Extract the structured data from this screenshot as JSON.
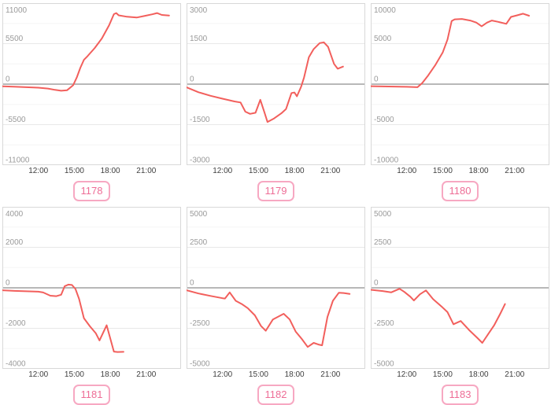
{
  "style": {
    "line_color": "#f25f5c",
    "grid_color": "#e8e8e8",
    "minor_grid_color": "#f6f6f6",
    "zero_line_color": "#8e8e8e",
    "panel_border_color": "#d8d8d8",
    "y_label_color": "#9a9a9a",
    "x_label_color": "#404040",
    "button_border_color": "#f7a8c2",
    "button_text_color": "#ee6d96"
  },
  "charts": [
    {
      "button_label": "1178",
      "chart_data": {
        "type": "line",
        "xlim_hours": [
          9.0,
          23.9
        ],
        "xticks": [
          {
            "hour": 12,
            "label": "12:00"
          },
          {
            "hour": 15,
            "label": "15:00"
          },
          {
            "hour": 18,
            "label": "18:00"
          },
          {
            "hour": 21,
            "label": "21:00"
          }
        ],
        "ylim": [
          -11000,
          11000
        ],
        "yticks": [
          11000,
          5500,
          0,
          -5500,
          -11000
        ],
        "grid": "horizontal-only",
        "legend": "none",
        "points": [
          [
            9,
            -300
          ],
          [
            10,
            -350
          ],
          [
            11,
            -420
          ],
          [
            12,
            -480
          ],
          [
            12.8,
            -600
          ],
          [
            13.4,
            -780
          ],
          [
            13.9,
            -900
          ],
          [
            14.4,
            -820
          ],
          [
            14.9,
            -150
          ],
          [
            15.2,
            900
          ],
          [
            15.5,
            2200
          ],
          [
            15.8,
            3300
          ],
          [
            16.1,
            3800
          ],
          [
            16.7,
            4900
          ],
          [
            17.3,
            6200
          ],
          [
            17.9,
            8000
          ],
          [
            18.3,
            9500
          ],
          [
            18.5,
            9650
          ],
          [
            18.7,
            9350
          ],
          [
            19.4,
            9150
          ],
          [
            20.2,
            9050
          ],
          [
            20.9,
            9280
          ],
          [
            21.5,
            9480
          ],
          [
            21.9,
            9650
          ],
          [
            22.3,
            9400
          ],
          [
            22.9,
            9320
          ]
        ]
      }
    },
    {
      "button_label": "1179",
      "chart_data": {
        "type": "line",
        "xlim_hours": [
          9.0,
          23.9
        ],
        "xticks": [
          {
            "hour": 12,
            "label": "12:00"
          },
          {
            "hour": 15,
            "label": "15:00"
          },
          {
            "hour": 18,
            "label": "18:00"
          },
          {
            "hour": 21,
            "label": "21:00"
          }
        ],
        "ylim": [
          -3000,
          3000
        ],
        "yticks": [
          3000,
          1500,
          0,
          -1500,
          -3000
        ],
        "grid": "horizontal-only",
        "legend": "none",
        "points": [
          [
            9,
            -120
          ],
          [
            10,
            -300
          ],
          [
            11,
            -430
          ],
          [
            12,
            -540
          ],
          [
            13,
            -640
          ],
          [
            13.5,
            -680
          ],
          [
            13.9,
            -1020
          ],
          [
            14.3,
            -1100
          ],
          [
            14.75,
            -1060
          ],
          [
            15.15,
            -580
          ],
          [
            15.5,
            -1050
          ],
          [
            15.75,
            -1400
          ],
          [
            16.3,
            -1270
          ],
          [
            16.9,
            -1080
          ],
          [
            17.3,
            -920
          ],
          [
            17.75,
            -330
          ],
          [
            18.0,
            -310
          ],
          [
            18.2,
            -450
          ],
          [
            18.55,
            -100
          ],
          [
            18.8,
            250
          ],
          [
            19.2,
            1000
          ],
          [
            19.6,
            1300
          ],
          [
            20.1,
            1520
          ],
          [
            20.45,
            1550
          ],
          [
            20.8,
            1380
          ],
          [
            21.3,
            750
          ],
          [
            21.6,
            570
          ],
          [
            22.05,
            650
          ]
        ]
      }
    },
    {
      "button_label": "1180",
      "chart_data": {
        "type": "line",
        "xlim_hours": [
          9.0,
          23.9
        ],
        "xticks": [
          {
            "hour": 12,
            "label": "12:00"
          },
          {
            "hour": 15,
            "label": "15:00"
          },
          {
            "hour": 18,
            "label": "18:00"
          },
          {
            "hour": 21,
            "label": "21:00"
          }
        ],
        "ylim": [
          -10000,
          10000
        ],
        "yticks": [
          10000,
          5000,
          0,
          -5000,
          -10000
        ],
        "grid": "horizontal-only",
        "legend": "none",
        "points": [
          [
            9,
            -250
          ],
          [
            10,
            -280
          ],
          [
            11,
            -300
          ],
          [
            12,
            -330
          ],
          [
            12.9,
            -380
          ],
          [
            13.3,
            150
          ],
          [
            13.8,
            1100
          ],
          [
            14.4,
            2400
          ],
          [
            15,
            3900
          ],
          [
            15.4,
            5500
          ],
          [
            15.75,
            7800
          ],
          [
            16,
            8000
          ],
          [
            16.6,
            8050
          ],
          [
            17.3,
            7850
          ],
          [
            17.8,
            7600
          ],
          [
            18.25,
            7150
          ],
          [
            18.7,
            7600
          ],
          [
            19.1,
            7850
          ],
          [
            19.6,
            7700
          ],
          [
            20.3,
            7450
          ],
          [
            20.7,
            8300
          ],
          [
            21.2,
            8500
          ],
          [
            21.7,
            8700
          ],
          [
            22.2,
            8450
          ]
        ]
      }
    },
    {
      "button_label": "1181",
      "chart_data": {
        "type": "line",
        "xlim_hours": [
          9.0,
          23.9
        ],
        "xticks": [
          {
            "hour": 12,
            "label": "12:00"
          },
          {
            "hour": 15,
            "label": "15:00"
          },
          {
            "hour": 18,
            "label": "18:00"
          },
          {
            "hour": 21,
            "label": "21:00"
          }
        ],
        "ylim": [
          -4000,
          4000
        ],
        "yticks": [
          4000,
          2000,
          0,
          -2000,
          -4000
        ],
        "grid": "horizontal-only",
        "legend": "none",
        "points": [
          [
            9,
            -120
          ],
          [
            10,
            -150
          ],
          [
            11,
            -170
          ],
          [
            12,
            -190
          ],
          [
            12.4,
            -230
          ],
          [
            13,
            -390
          ],
          [
            13.5,
            -410
          ],
          [
            13.9,
            -340
          ],
          [
            14.2,
            80
          ],
          [
            14.5,
            160
          ],
          [
            14.8,
            140
          ],
          [
            15.1,
            -60
          ],
          [
            15.4,
            -550
          ],
          [
            15.8,
            -1500
          ],
          [
            16.3,
            -1900
          ],
          [
            16.8,
            -2250
          ],
          [
            17.1,
            -2600
          ],
          [
            17.7,
            -1850
          ],
          [
            18.3,
            -3150
          ],
          [
            18.6,
            -3170
          ],
          [
            19.1,
            -3160
          ]
        ]
      }
    },
    {
      "button_label": "1182",
      "chart_data": {
        "type": "line",
        "xlim_hours": [
          9.0,
          23.9
        ],
        "xticks": [
          {
            "hour": 12,
            "label": "12:00"
          },
          {
            "hour": 15,
            "label": "15:00"
          },
          {
            "hour": 18,
            "label": "18:00"
          },
          {
            "hour": 21,
            "label": "21:00"
          }
        ],
        "ylim": [
          -5000,
          5000
        ],
        "yticks": [
          5000,
          2500,
          0,
          -2500,
          -5000
        ],
        "grid": "horizontal-only",
        "legend": "none",
        "points": [
          [
            9,
            -150
          ],
          [
            10,
            -350
          ],
          [
            11,
            -500
          ],
          [
            12,
            -640
          ],
          [
            12.2,
            -660
          ],
          [
            12.6,
            -280
          ],
          [
            13.1,
            -800
          ],
          [
            13.6,
            -1000
          ],
          [
            14.1,
            -1250
          ],
          [
            14.7,
            -1700
          ],
          [
            15.2,
            -2350
          ],
          [
            15.6,
            -2650
          ],
          [
            16.2,
            -1950
          ],
          [
            17.1,
            -1600
          ],
          [
            17.6,
            -1950
          ],
          [
            18.1,
            -2700
          ],
          [
            18.6,
            -3150
          ],
          [
            19.1,
            -3650
          ],
          [
            19.6,
            -3400
          ],
          [
            20.0,
            -3500
          ],
          [
            20.3,
            -3550
          ],
          [
            20.75,
            -1800
          ],
          [
            21.2,
            -800
          ],
          [
            21.7,
            -300
          ],
          [
            22.1,
            -320
          ],
          [
            22.6,
            -380
          ]
        ]
      }
    },
    {
      "button_label": "1183",
      "chart_data": {
        "type": "line",
        "xlim_hours": [
          9.0,
          23.9
        ],
        "xticks": [
          {
            "hour": 12,
            "label": "12:00"
          },
          {
            "hour": 15,
            "label": "15:00"
          },
          {
            "hour": 18,
            "label": "18:00"
          },
          {
            "hour": 21,
            "label": "21:00"
          }
        ],
        "ylim": [
          -5000,
          5000
        ],
        "yticks": [
          5000,
          2500,
          0,
          -2500,
          -5000
        ],
        "grid": "horizontal-only",
        "legend": "none",
        "points": [
          [
            9,
            -120
          ],
          [
            10,
            -200
          ],
          [
            10.7,
            -280
          ],
          [
            11.4,
            -60
          ],
          [
            11.8,
            -250
          ],
          [
            12.3,
            -550
          ],
          [
            12.6,
            -780
          ],
          [
            13.1,
            -400
          ],
          [
            13.6,
            -160
          ],
          [
            14.2,
            -700
          ],
          [
            14.9,
            -1150
          ],
          [
            15.4,
            -1500
          ],
          [
            15.9,
            -2250
          ],
          [
            16.5,
            -2050
          ],
          [
            17.2,
            -2600
          ],
          [
            17.9,
            -3100
          ],
          [
            18.3,
            -3400
          ],
          [
            18.8,
            -2850
          ],
          [
            19.3,
            -2300
          ],
          [
            19.8,
            -1600
          ],
          [
            20.2,
            -1000
          ]
        ]
      }
    }
  ]
}
